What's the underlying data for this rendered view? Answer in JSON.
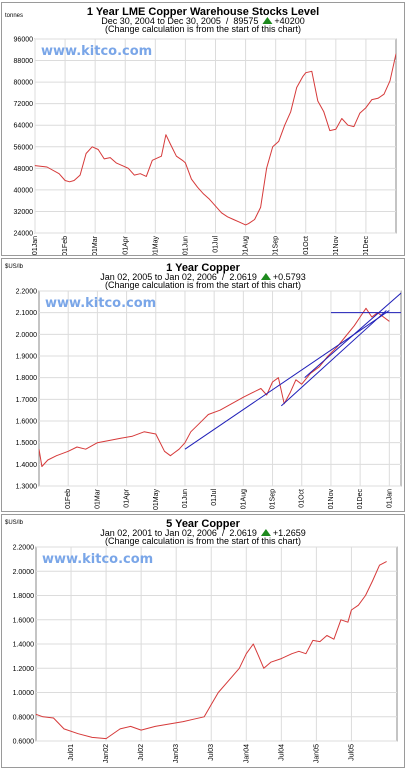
{
  "charts": [
    {
      "title": "1 Year LME Copper Warehouse Stocks Level",
      "subtitle_range": "Dec 30, 2004 to Dec 30, 2005",
      "subtitle_value": "89575",
      "subtitle_change": "+40200",
      "note": "(Change calculation is from the start of this chart)",
      "unit": "tonnes",
      "watermark": "www.kitco.com"
    },
    {
      "title": "1 Year Copper",
      "subtitle_range": "Jan 02, 2005 to Jan 02, 2006",
      "subtitle_value": "2.0619",
      "subtitle_change": "+0.5793",
      "note": "(Change calculation is from the start of this chart)",
      "unit": "$US/lb",
      "watermark": "www.kitco.com"
    },
    {
      "title": "5 Year Copper",
      "subtitle_range": "Jan 02, 2001 to Jan 02, 2006",
      "subtitle_value": "2.0619",
      "subtitle_change": "+1.2659",
      "note": "(Change calculation is from the start of this chart)",
      "unit": "$US/lb",
      "watermark": "www.kitco.com"
    }
  ],
  "chart_data": [
    {
      "type": "line",
      "ylim": [
        24000,
        96000
      ],
      "yticks": [
        "96000",
        "88000",
        "80000",
        "72000",
        "64000",
        "56000",
        "48000",
        "40000",
        "32000",
        "24000"
      ],
      "xticks": [
        "01Jan",
        "01Feb",
        "01Mar",
        "01Apr",
        "01May",
        "01Jun",
        "01Jul",
        "01Aug",
        "01Sep",
        "01Oct",
        "01Nov",
        "01Dec"
      ],
      "grid": true,
      "line_color": "#d63a3a",
      "series": [
        {
          "x": [
            0,
            0.4,
            0.8,
            1.0,
            1.15,
            1.3,
            1.5,
            1.7,
            1.9,
            2.1,
            2.3,
            2.5,
            2.7,
            2.9,
            3.1,
            3.3,
            3.5,
            3.7,
            3.9,
            4.1,
            4.2,
            4.35,
            4.5,
            4.7,
            4.9,
            5.0,
            5.2,
            5.4,
            5.6,
            5.8,
            6.0,
            6.2,
            6.4,
            6.6,
            6.8,
            7.0,
            7.1,
            7.3,
            7.5,
            7.7,
            7.9,
            8.1,
            8.3,
            8.5,
            8.7,
            8.9,
            9.0,
            9.2,
            9.4,
            9.6,
            9.8,
            10.0,
            10.2,
            10.4,
            10.6,
            10.8,
            11.0,
            11.2,
            11.4,
            11.6,
            11.8,
            12.0
          ],
          "y": [
            49000,
            48500,
            46000,
            43500,
            43000,
            43500,
            45500,
            53500,
            56000,
            55000,
            51500,
            52000,
            50000,
            49000,
            48000,
            45500,
            46000,
            45000,
            51000,
            52000,
            52500,
            60500,
            57000,
            52500,
            51000,
            50000,
            44000,
            41000,
            38500,
            36500,
            34000,
            31500,
            30000,
            29000,
            28000,
            27000,
            27500,
            29000,
            33500,
            48000,
            56000,
            58000,
            64000,
            69000,
            78000,
            82000,
            83500,
            84000,
            73000,
            69000,
            62000,
            62500,
            66500,
            64000,
            63500,
            68500,
            70500,
            73500,
            74000,
            75500,
            80500,
            90500
          ]
        }
      ]
    },
    {
      "type": "line",
      "ylim": [
        1.3,
        2.2
      ],
      "yticks": [
        "2.2000",
        "2.1000",
        "2.0000",
        "1.9000",
        "1.8000",
        "1.7000",
        "1.6000",
        "1.5000",
        "1.4000",
        "1.3000"
      ],
      "xticks": [
        "01Feb",
        "01Mar",
        "01Apr",
        "01May",
        "01Jun",
        "01Jul",
        "01Aug",
        "01Sep",
        "01Oct",
        "01Nov",
        "01Dec",
        "01Jan"
      ],
      "grid": true,
      "line_color": "#d63a3a",
      "series": [
        {
          "x": [
            0,
            0.1,
            0.3,
            0.6,
            1.0,
            1.3,
            1.6,
            2.0,
            2.4,
            2.8,
            3.2,
            3.6,
            4.0,
            4.3,
            4.5,
            4.6,
            4.8,
            5.0,
            5.2,
            5.5,
            5.8,
            6.2,
            6.6,
            7.0,
            7.3,
            7.6,
            7.8,
            8.0,
            8.2,
            8.4,
            8.6,
            8.8,
            9.0,
            9.3,
            9.6,
            9.9,
            10.2,
            10.5,
            10.8,
            11.0,
            11.2,
            11.4,
            11.6,
            11.8,
            12.0
          ],
          "y": [
            1.47,
            1.39,
            1.42,
            1.44,
            1.46,
            1.48,
            1.47,
            1.5,
            1.51,
            1.52,
            1.53,
            1.55,
            1.54,
            1.46,
            1.44,
            1.45,
            1.47,
            1.5,
            1.55,
            1.59,
            1.63,
            1.65,
            1.68,
            1.71,
            1.73,
            1.75,
            1.72,
            1.78,
            1.8,
            1.68,
            1.73,
            1.79,
            1.77,
            1.82,
            1.85,
            1.9,
            1.94,
            1.99,
            2.04,
            2.08,
            2.12,
            2.08,
            2.1,
            2.08,
            2.06
          ]
        }
      ],
      "trendlines": [
        {
          "x": [
            5.0,
            12.0
          ],
          "y": [
            1.47,
            2.11
          ]
        },
        {
          "x": [
            8.3,
            11.9
          ],
          "y": [
            1.67,
            2.11
          ]
        },
        {
          "x": [
            9.1,
            12.4
          ],
          "y": [
            1.8,
            2.19
          ]
        },
        {
          "x": [
            10.0,
            12.4
          ],
          "y": [
            2.1,
            2.1
          ]
        }
      ]
    },
    {
      "type": "line",
      "ylim": [
        0.6,
        2.2
      ],
      "yticks": [
        "2.2000",
        "2.0000",
        "1.8000",
        "1.6000",
        "1.4000",
        "1.2000",
        "1.0000",
        "0.8000",
        "0.6000"
      ],
      "xticks": [
        "Jul01",
        "Jan02",
        "Jul02",
        "Jan03",
        "Jul03",
        "Jan04",
        "Jul04",
        "Jan05",
        "Jul05"
      ],
      "grid": true,
      "line_color": "#d63a3a",
      "series": [
        {
          "x": [
            0,
            0.2,
            0.5,
            0.8,
            1.2,
            1.6,
            2.0,
            2.4,
            2.7,
            3.0,
            3.4,
            3.8,
            4.2,
            4.5,
            4.8,
            5.0,
            5.2,
            5.5,
            5.8,
            6.0,
            6.2,
            6.35,
            6.5,
            6.7,
            7.0,
            7.3,
            7.5,
            7.7,
            7.9,
            8.1,
            8.3,
            8.5,
            8.7,
            8.9,
            9.0,
            9.2,
            9.4,
            9.6,
            9.8,
            10.0
          ],
          "y": [
            0.82,
            0.8,
            0.79,
            0.7,
            0.66,
            0.63,
            0.62,
            0.7,
            0.72,
            0.69,
            0.72,
            0.74,
            0.76,
            0.78,
            0.8,
            0.9,
            1.0,
            1.1,
            1.2,
            1.32,
            1.4,
            1.3,
            1.2,
            1.25,
            1.28,
            1.32,
            1.34,
            1.32,
            1.43,
            1.42,
            1.47,
            1.44,
            1.6,
            1.58,
            1.68,
            1.72,
            1.8,
            1.92,
            2.05,
            2.08
          ]
        }
      ]
    }
  ]
}
